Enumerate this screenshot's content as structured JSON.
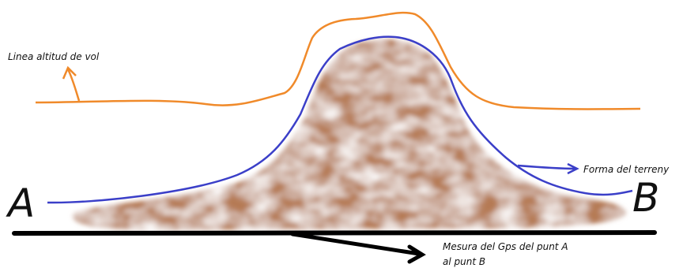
{
  "points": {
    "a": "A",
    "b": "B"
  },
  "annotations": {
    "flight_line": "Linea altitud de vol",
    "terrain": "Forma del terreny",
    "gps": [
      "Mesura del Gps del punt A",
      "al punt B"
    ]
  }
}
